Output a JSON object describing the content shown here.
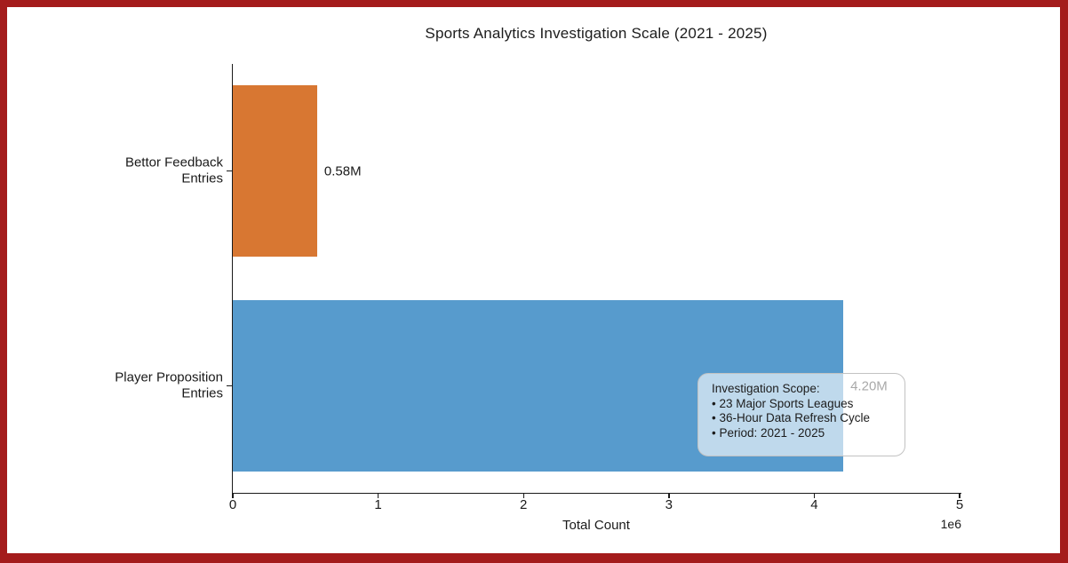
{
  "frame": {
    "border_color": "#a41c1c",
    "background_color": "#ffffff"
  },
  "chart_data": {
    "type": "bar",
    "orientation": "horizontal",
    "title": "Sports Analytics Investigation Scale (2021 - 2025)",
    "xlabel": "Total Count",
    "x_axis_offset_label": "1e6",
    "xlim": [
      0,
      5000000
    ],
    "x_tick_values": [
      0,
      1000000,
      2000000,
      3000000,
      4000000,
      5000000
    ],
    "x_tick_labels": [
      "0",
      "1",
      "2",
      "3",
      "4",
      "5"
    ],
    "grid": false,
    "legend": false,
    "categories_top_to_bottom": [
      "Bettor Feedback Entries",
      "Player Proposition Entries"
    ],
    "bars": [
      {
        "category": "Bettor Feedback Entries",
        "label_lines": [
          "Bettor Feedback",
          "Entries"
        ],
        "value": 580000,
        "value_label": "0.58M",
        "color": "#d87732"
      },
      {
        "category": "Player Proposition Entries",
        "label_lines": [
          "Player Proposition",
          "Entries"
        ],
        "value": 4200000,
        "value_label": "4.20M",
        "color": "#579bcd"
      }
    ],
    "annotation": {
      "title_line": "Investigation Scope:",
      "bullet_char": "•",
      "bullets": [
        "23 Major Sports Leagues",
        "36-Hour Data Refresh Cycle",
        "Period: 2021 - 2025"
      ]
    }
  }
}
